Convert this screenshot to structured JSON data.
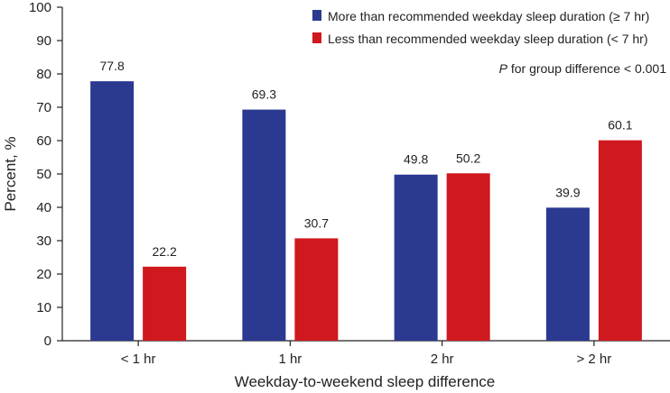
{
  "chart_data": {
    "type": "bar",
    "categories": [
      "< 1 hr",
      "1 hr",
      "2 hr",
      "> 2 hr"
    ],
    "series": [
      {
        "name": "More than recommended weekday sleep duration (≥ 7 hr)",
        "color": "#2b3990",
        "values": [
          77.8,
          69.3,
          49.8,
          39.9
        ]
      },
      {
        "name": "Less than recommended weekday sleep duration (< 7 hr)",
        "color": "#d0181f",
        "values": [
          22.2,
          30.7,
          50.2,
          60.1
        ]
      }
    ],
    "xlabel": "Weekday-to-weekend sleep difference",
    "ylabel": "Percent, %",
    "ylim": [
      0,
      100
    ],
    "yticks": [
      0,
      10,
      20,
      30,
      40,
      50,
      60,
      70,
      80,
      90,
      100
    ],
    "grid": false,
    "legend_position": "top-right",
    "annotation": {
      "italic_part": "P",
      "text": " for group difference < 0.001"
    }
  }
}
